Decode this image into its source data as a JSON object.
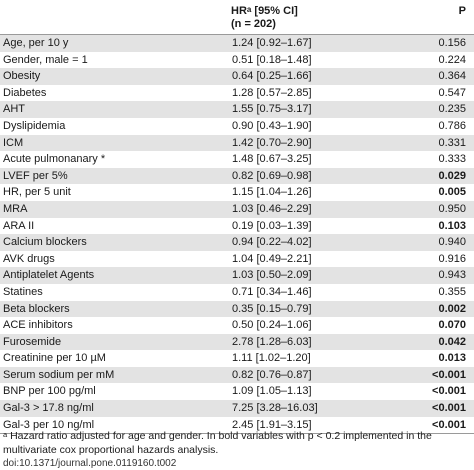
{
  "header": {
    "hr_label": "HR",
    "hr_sup": "a",
    "hr_label_rest": " [95% CI]",
    "n_label": "(n = 202)",
    "p_label": "P"
  },
  "rows": [
    {
      "var": "Age, per 10 y",
      "hr": "1.24 [0.92–1.67]",
      "p": "0.156",
      "bold": false
    },
    {
      "var": "Gender, male = 1",
      "hr": "0.51 [0.18–1.48]",
      "p": "0.224",
      "bold": false
    },
    {
      "var": "Obesity",
      "hr": "0.64 [0.25–1.66]",
      "p": "0.364",
      "bold": false
    },
    {
      "var": "Diabetes",
      "hr": "1.28 [0.57–2.85]",
      "p": "0.547",
      "bold": false
    },
    {
      "var": "AHT",
      "hr": "1.55 [0.75–3.17]",
      "p": "0.235",
      "bold": false
    },
    {
      "var": "Dyslipidemia",
      "hr": "0.90 [0.43–1.90]",
      "p": "0.786",
      "bold": false
    },
    {
      "var": "ICM",
      "hr": "1.42 [0.70–2.90]",
      "p": "0.331",
      "bold": false
    },
    {
      "var": "Acute pulmonanary *",
      "hr": "1.48 [0.67–3.25]",
      "p": "0.333",
      "bold": false
    },
    {
      "var": "LVEF per 5%",
      "hr": "0.82 [0.69–0.98]",
      "p": "0.029",
      "bold": true
    },
    {
      "var": "HR, per 5 unit",
      "hr": "1.15 [1.04–1.26]",
      "p": "0.005",
      "bold": true
    },
    {
      "var": "MRA",
      "hr": "1.03 [0.46–2.29]",
      "p": "0.950",
      "bold": false
    },
    {
      "var": "ARA II",
      "hr": "0.19 [0.03–1.39]",
      "p": "0.103",
      "bold": true
    },
    {
      "var": "Calcium blockers",
      "hr": "0.94 [0.22–4.02]",
      "p": "0.940",
      "bold": false
    },
    {
      "var": "AVK drugs",
      "hr": "1.04 [0.49–2.21]",
      "p": "0.916",
      "bold": false
    },
    {
      "var": "Antiplatelet Agents",
      "hr": "1.03 [0.50–2.09]",
      "p": "0.943",
      "bold": false
    },
    {
      "var": "Statines",
      "hr": "0.71 [0.34–1.46]",
      "p": "0.355",
      "bold": false
    },
    {
      "var": "Beta blockers",
      "hr": "0.35 [0.15–0.79]",
      "p": "0.002",
      "bold": true
    },
    {
      "var": "ACE inhibitors",
      "hr": "0.50 [0.24–1.06]",
      "p": "0.070",
      "bold": true
    },
    {
      "var": "Furosemide",
      "hr": "2.78 [1.28–6.03]",
      "p": "0.042",
      "bold": true
    },
    {
      "var": "Creatinine per 10 µM",
      "hr": "1.11 [1.02–1.20]",
      "p": "0.013",
      "bold": true
    },
    {
      "var": "Serum sodium per mM",
      "hr": "0.82 [0.76–0.87]",
      "p": "<0.001",
      "bold": true
    },
    {
      "var": "BNP per 100 pg/ml",
      "hr": "1.09 [1.05–1.13]",
      "p": "<0.001",
      "bold": true
    },
    {
      "var": "Gal-3 > 17.8 ng/ml",
      "hr": "7.25 [3.28–16.03]",
      "p": "<0.001",
      "bold": true
    },
    {
      "var": "Gal-3 per 10 ng/ml",
      "hr": "2.45 [1.91–3.15]",
      "p": "<0.001",
      "bold": true
    }
  ],
  "footnote": {
    "sup": "a",
    "text": " Hazard ratio adjusted for age and gender. In bold variables with p < 0.2 implemented in the multivariate cox proportional hazards analysis."
  },
  "doi": "doi:10.1371/journal.pone.0119160.t002"
}
